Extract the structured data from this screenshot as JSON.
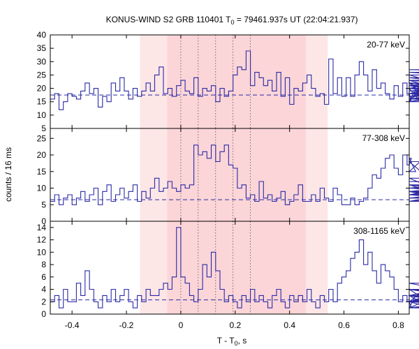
{
  "chart_data": {
    "type": "line",
    "title": {
      "prefix": "KONUS-WIND S2 GRB 110401 T",
      "sub": "0",
      "suffix": " = 79461.937s UT (22:04:21.937)"
    },
    "xlabel": {
      "prefix": "T - T",
      "sub": "0",
      "suffix": ", s"
    },
    "ylabel": "counts / 16 ms",
    "xlim": [
      -0.48,
      0.84
    ],
    "xticks": [
      -0.4,
      -0.2,
      0,
      0.2,
      0.4,
      0.6,
      0.8
    ],
    "xtick_labels": [
      "-0.4",
      "-0.2",
      "0",
      "0.2",
      "0.4",
      "0.6",
      "0.8"
    ],
    "light_shaded_interval": [
      -0.15,
      0.54
    ],
    "dark_shaded_interval": [
      -0.05,
      0.46
    ],
    "vertical_dotted_lines": [
      0.0,
      0.064,
      0.128,
      0.192,
      0.256
    ],
    "line_color": "#2a2aa8",
    "panels": [
      {
        "band": "20-77 keV",
        "ylim": [
          5,
          40
        ],
        "yticks": [
          5,
          10,
          15,
          20,
          25,
          30,
          35,
          40
        ],
        "background": 17.5,
        "x_start": -0.48,
        "bin_width": 0.016,
        "counts": [
          16,
          18,
          12,
          15,
          18,
          17,
          16,
          19,
          22,
          18,
          20,
          13,
          17,
          15,
          22,
          19,
          24,
          19,
          16,
          20,
          17,
          19,
          22,
          19,
          25,
          28,
          18,
          20,
          17,
          21,
          23,
          19,
          18,
          24,
          17,
          20,
          19,
          21,
          15,
          20,
          17,
          19,
          25,
          28,
          27,
          34,
          21,
          26,
          24,
          21,
          23,
          19,
          26,
          17,
          24,
          14,
          20,
          19,
          22,
          25,
          20,
          17,
          18,
          14,
          31,
          18,
          24,
          17,
          24,
          17,
          25,
          30,
          25,
          19,
          27,
          20,
          22,
          18,
          16,
          21,
          17,
          22,
          18,
          15,
          20,
          15,
          22,
          16,
          20,
          22,
          17,
          20,
          18,
          21,
          23,
          17,
          19,
          21,
          16,
          20,
          18,
          25,
          16,
          20,
          18,
          15,
          23,
          21,
          19,
          22,
          21,
          27,
          26,
          23,
          24,
          18,
          20,
          17,
          19,
          23,
          20,
          18,
          24,
          17,
          21,
          20,
          17,
          22,
          15,
          19,
          18,
          23,
          17,
          20,
          16,
          22,
          18,
          21,
          15,
          19,
          22,
          17,
          20
        ]
      },
      {
        "band": "77-308 keV",
        "ylim": [
          0,
          28
        ],
        "yticks": [
          0,
          5,
          10,
          15,
          20,
          25
        ],
        "background": 6.5,
        "x_start": -0.48,
        "bin_width": 0.016,
        "counts": [
          6,
          8,
          5,
          7,
          8,
          5,
          7,
          9,
          6,
          8,
          10,
          5,
          9,
          11,
          6,
          8,
          10,
          7,
          9,
          11,
          6,
          9,
          7,
          10,
          13,
          9,
          10,
          12,
          10,
          9,
          11,
          10,
          11,
          23,
          20,
          21,
          19,
          23,
          18,
          21,
          23,
          17,
          16,
          10,
          11,
          7,
          8,
          6,
          12,
          7,
          8,
          6,
          7,
          9,
          5,
          6,
          8,
          11,
          6,
          6,
          8,
          6,
          10,
          7,
          6,
          10,
          8,
          5,
          5,
          7,
          5,
          6,
          7,
          10,
          14,
          13,
          16,
          19,
          20,
          16,
          14,
          20,
          17,
          19,
          15,
          18,
          18,
          13,
          10,
          11,
          8,
          10,
          9,
          6,
          9,
          7,
          9,
          6,
          7,
          8,
          6,
          8,
          8,
          10,
          8,
          7,
          9,
          12,
          11,
          7,
          8,
          8,
          10,
          9,
          7,
          9,
          8,
          11,
          7,
          9,
          8,
          6,
          9,
          7,
          8,
          10,
          6,
          8,
          7,
          9,
          7,
          8,
          6,
          9,
          7,
          10,
          8,
          9,
          7,
          8,
          6,
          8,
          7
        ]
      },
      {
        "band": "308-1165 keV",
        "ylim": [
          0,
          15
        ],
        "yticks": [
          0,
          2,
          4,
          6,
          8,
          10,
          12,
          14
        ],
        "background": 2.3,
        "x_start": -0.48,
        "bin_width": 0.016,
        "counts": [
          2,
          3,
          1,
          4,
          2,
          2,
          5,
          3,
          7,
          4,
          2,
          1,
          3,
          2,
          4,
          2,
          3,
          4,
          2,
          1,
          3,
          2,
          4,
          3,
          3,
          4,
          5,
          4,
          6,
          14,
          6,
          5,
          3,
          2,
          4,
          8,
          6,
          10,
          7,
          4,
          2,
          3,
          2,
          1,
          3,
          2,
          4,
          2,
          3,
          2,
          1,
          3,
          4,
          2,
          1,
          3,
          2,
          3,
          2,
          4,
          2,
          1,
          3,
          2,
          4,
          2,
          5,
          6,
          7,
          9,
          10,
          12,
          8,
          10,
          7,
          5,
          8,
          7,
          6,
          4,
          2,
          3,
          2,
          1,
          3,
          2,
          4,
          2,
          1,
          3,
          2,
          4,
          3,
          2,
          4,
          3,
          5,
          3,
          2,
          4,
          2,
          3,
          4,
          2,
          1,
          3,
          2,
          4,
          2,
          3,
          2,
          4,
          3,
          2,
          4,
          2,
          1,
          3,
          2,
          4,
          2,
          3,
          2,
          1,
          3,
          2,
          4,
          3,
          2,
          1,
          3,
          2,
          4,
          2,
          3,
          2,
          1,
          3,
          2,
          4,
          2,
          3,
          2
        ]
      }
    ]
  }
}
